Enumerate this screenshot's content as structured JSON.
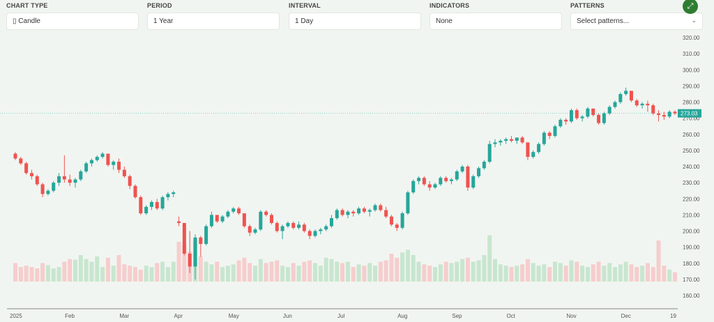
{
  "controls": {
    "chart_type": {
      "label": "CHART TYPE",
      "value": "Candle",
      "icon": "candle-icon"
    },
    "period": {
      "label": "PERIOD",
      "value": "1 Year"
    },
    "interval": {
      "label": "INTERVAL",
      "value": "1 Day"
    },
    "indicators": {
      "label": "INDICATORS",
      "value": "None"
    },
    "patterns": {
      "label": "PATTERNS",
      "placeholder": "Select patterns..."
    },
    "fullscreen_icon": "expand-icon"
  },
  "chart_data": {
    "type": "candlestick",
    "ylim": [
      160,
      320
    ],
    "y_ticks": [
      "320.00",
      "310.00",
      "300.00",
      "290.00",
      "280.00",
      "270.00",
      "260.00",
      "250.00",
      "240.00",
      "230.00",
      "220.00",
      "210.00",
      "200.00",
      "190.00",
      "180.00",
      "170.00",
      "160.00"
    ],
    "x_ticks": [
      "2025",
      "Feb",
      "Mar",
      "Apr",
      "May",
      "Jun",
      "Jul",
      "Aug",
      "Sep",
      "Oct",
      "Nov",
      "Dec",
      "19"
    ],
    "last_price": "273.03",
    "colors": {
      "up": "#26a69a",
      "down": "#ef5350",
      "up_volume": "#c8e6cf",
      "down_volume": "#f6cdcd"
    },
    "grid": false,
    "candles_ohlcv": [
      [
        248,
        249,
        244,
        245,
        28
      ],
      [
        245,
        246,
        241,
        242,
        22
      ],
      [
        242,
        243,
        235,
        236,
        24
      ],
      [
        236,
        238,
        232,
        234,
        22
      ],
      [
        234,
        235,
        228,
        229,
        20
      ],
      [
        229,
        230,
        221,
        223,
        28
      ],
      [
        223,
        226,
        222,
        225,
        25
      ],
      [
        225,
        231,
        224,
        230,
        20
      ],
      [
        230,
        236,
        228,
        234,
        22
      ],
      [
        234,
        247,
        230,
        232,
        30
      ],
      [
        232,
        235,
        228,
        230,
        34
      ],
      [
        230,
        233,
        227,
        232,
        33
      ],
      [
        232,
        238,
        231,
        237,
        40
      ],
      [
        237,
        243,
        236,
        242,
        34
      ],
      [
        242,
        245,
        240,
        244,
        30
      ],
      [
        244,
        247,
        243,
        246,
        38
      ],
      [
        246,
        249,
        245,
        248,
        22
      ],
      [
        248,
        248,
        240,
        241,
        36
      ],
      [
        241,
        244,
        238,
        243,
        24
      ],
      [
        243,
        245,
        236,
        238,
        40
      ],
      [
        238,
        240,
        233,
        234,
        26
      ],
      [
        234,
        235,
        226,
        228,
        24
      ],
      [
        228,
        229,
        220,
        221,
        22
      ],
      [
        221,
        222,
        210,
        211,
        18
      ],
      [
        211,
        216,
        210,
        215,
        24
      ],
      [
        215,
        219,
        213,
        218,
        22
      ],
      [
        218,
        220,
        213,
        214,
        28
      ],
      [
        214,
        222,
        213,
        221,
        30
      ],
      [
        221,
        224,
        219,
        223,
        22
      ],
      [
        223,
        225,
        221,
        224,
        30
      ],
      [
        206,
        209,
        203,
        205,
        60
      ],
      [
        205,
        205,
        185,
        186,
        55
      ],
      [
        186,
        200,
        174,
        178,
        45
      ],
      [
        178,
        198,
        170,
        196,
        62
      ],
      [
        196,
        197,
        184,
        192,
        38
      ],
      [
        192,
        204,
        191,
        203,
        30
      ],
      [
        203,
        212,
        202,
        210,
        26
      ],
      [
        210,
        210,
        205,
        206,
        30
      ],
      [
        206,
        210,
        205,
        209,
        22
      ],
      [
        209,
        213,
        208,
        212,
        24
      ],
      [
        212,
        215,
        211,
        214,
        26
      ],
      [
        214,
        215,
        210,
        211,
        32
      ],
      [
        211,
        211,
        202,
        203,
        36
      ],
      [
        203,
        204,
        197,
        199,
        28
      ],
      [
        199,
        202,
        198,
        201,
        24
      ],
      [
        201,
        213,
        200,
        212,
        34
      ],
      [
        212,
        213,
        209,
        210,
        28
      ],
      [
        210,
        211,
        204,
        205,
        30
      ],
      [
        205,
        206,
        199,
        200,
        32
      ],
      [
        200,
        204,
        195,
        203,
        24
      ],
      [
        203,
        206,
        202,
        205,
        22
      ],
      [
        205,
        206,
        201,
        202,
        28
      ],
      [
        202,
        206,
        201,
        204,
        24
      ],
      [
        204,
        205,
        199,
        200,
        30
      ],
      [
        200,
        201,
        195,
        197,
        32
      ],
      [
        197,
        201,
        196,
        200,
        28
      ],
      [
        200,
        202,
        198,
        201,
        24
      ],
      [
        201,
        204,
        200,
        203,
        36
      ],
      [
        203,
        210,
        202,
        208,
        34
      ],
      [
        208,
        214,
        207,
        213,
        30
      ],
      [
        213,
        214,
        209,
        210,
        28
      ],
      [
        210,
        213,
        208,
        212,
        30
      ],
      [
        212,
        213,
        209,
        211,
        22
      ],
      [
        211,
        215,
        210,
        214,
        26
      ],
      [
        214,
        215,
        211,
        212,
        24
      ],
      [
        212,
        214,
        209,
        213,
        28
      ],
      [
        213,
        217,
        212,
        216,
        24
      ],
      [
        216,
        217,
        212,
        213,
        30
      ],
      [
        213,
        215,
        208,
        209,
        32
      ],
      [
        209,
        210,
        203,
        204,
        42
      ],
      [
        204,
        205,
        200,
        202,
        36
      ],
      [
        202,
        212,
        201,
        211,
        44
      ],
      [
        211,
        225,
        210,
        224,
        48
      ],
      [
        224,
        232,
        223,
        231,
        40
      ],
      [
        231,
        234,
        229,
        233,
        30
      ],
      [
        233,
        234,
        228,
        229,
        26
      ],
      [
        229,
        231,
        225,
        227,
        24
      ],
      [
        227,
        230,
        226,
        229,
        22
      ],
      [
        229,
        234,
        228,
        233,
        26
      ],
      [
        233,
        234,
        230,
        231,
        30
      ],
      [
        231,
        233,
        229,
        232,
        28
      ],
      [
        232,
        238,
        231,
        237,
        30
      ],
      [
        237,
        241,
        236,
        240,
        34
      ],
      [
        240,
        241,
        225,
        227,
        36
      ],
      [
        227,
        235,
        226,
        234,
        30
      ],
      [
        234,
        240,
        233,
        239,
        32
      ],
      [
        239,
        244,
        238,
        243,
        40
      ],
      [
        243,
        256,
        242,
        254,
        70
      ],
      [
        254,
        257,
        252,
        255,
        34
      ],
      [
        255,
        257,
        253,
        256,
        26
      ],
      [
        256,
        258,
        254,
        257,
        24
      ],
      [
        257,
        259,
        255,
        256,
        22
      ],
      [
        256,
        258,
        254,
        258,
        24
      ],
      [
        258,
        259,
        254,
        255,
        26
      ],
      [
        255,
        255,
        244,
        246,
        34
      ],
      [
        246,
        250,
        245,
        249,
        28
      ],
      [
        249,
        255,
        248,
        254,
        24
      ],
      [
        254,
        262,
        253,
        261,
        26
      ],
      [
        261,
        262,
        257,
        259,
        22
      ],
      [
        259,
        266,
        258,
        265,
        30
      ],
      [
        265,
        270,
        264,
        269,
        28
      ],
      [
        269,
        270,
        266,
        268,
        24
      ],
      [
        268,
        276,
        267,
        275,
        32
      ],
      [
        275,
        276,
        269,
        270,
        30
      ],
      [
        270,
        272,
        268,
        271,
        24
      ],
      [
        271,
        277,
        270,
        276,
        22
      ],
      [
        276,
        276,
        271,
        272,
        26
      ],
      [
        272,
        273,
        266,
        267,
        30
      ],
      [
        267,
        274,
        266,
        273,
        24
      ],
      [
        273,
        278,
        272,
        277,
        28
      ],
      [
        277,
        281,
        276,
        280,
        22
      ],
      [
        280,
        286,
        279,
        285,
        26
      ],
      [
        285,
        289,
        284,
        287,
        30
      ],
      [
        287,
        287,
        280,
        281,
        26
      ],
      [
        281,
        282,
        277,
        278,
        22
      ],
      [
        278,
        280,
        276,
        279,
        24
      ],
      [
        279,
        281,
        274,
        278,
        28
      ],
      [
        278,
        279,
        272,
        273,
        22
      ],
      [
        273,
        275,
        268,
        272,
        62
      ],
      [
        272,
        274,
        269,
        271,
        24
      ],
      [
        271,
        275,
        270,
        274,
        18
      ],
      [
        274,
        275,
        272,
        273.03,
        14
      ]
    ]
  }
}
